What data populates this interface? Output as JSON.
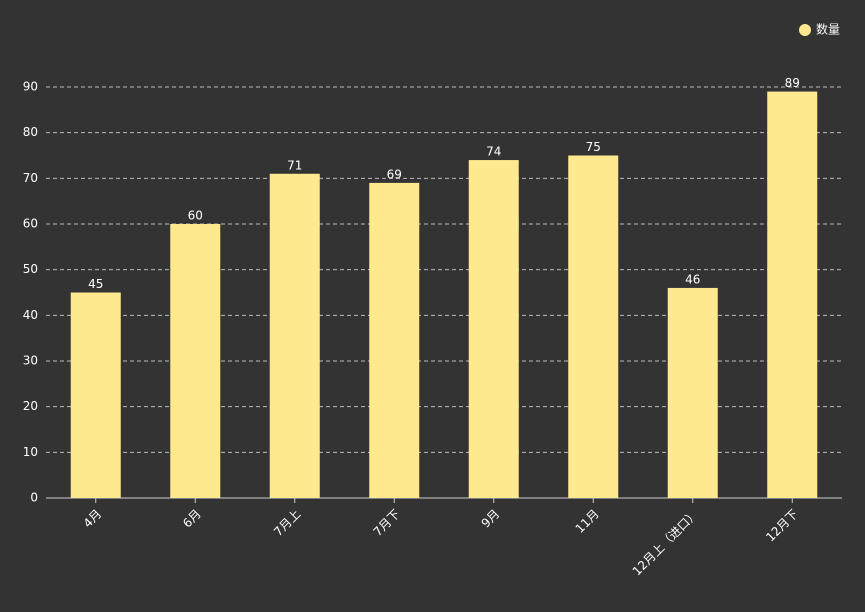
{
  "chart_data": {
    "type": "bar",
    "categories": [
      "4月",
      "6月",
      "7月上",
      "7月下",
      "9月",
      "11月",
      "12月上（进口）",
      "12月下"
    ],
    "series": [
      {
        "name": "数量",
        "color": "#ffe98f",
        "values": [
          45,
          60,
          71,
          69,
          74,
          75,
          46,
          89
        ]
      }
    ],
    "ylim": [
      0,
      90
    ],
    "yticks": [
      0,
      10,
      20,
      30,
      40,
      50,
      60,
      70,
      80,
      90
    ],
    "grid": true,
    "legend": "top-right"
  }
}
